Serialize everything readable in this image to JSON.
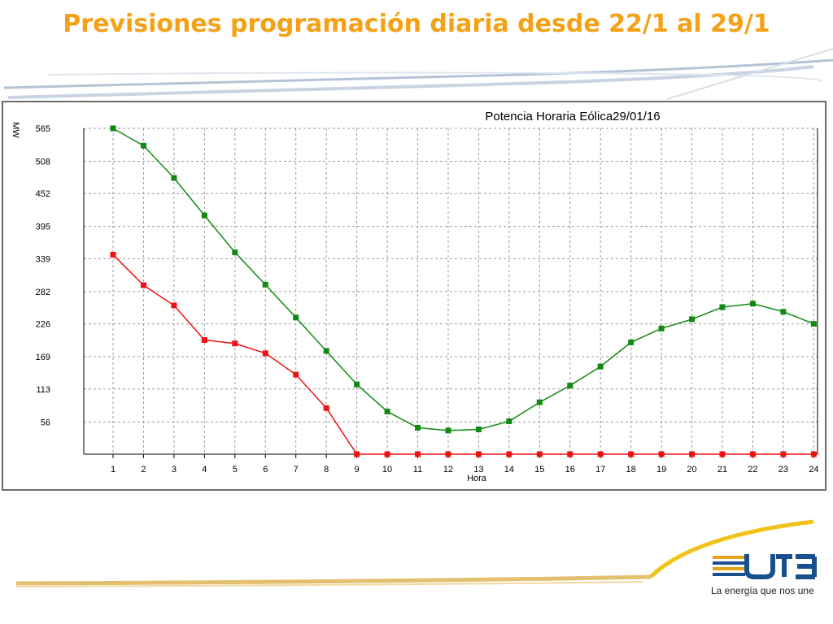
{
  "slide": {
    "title": "Previsiones programación diaria desde 22/1 al 29/1"
  },
  "logo": {
    "name": "UTE",
    "tagline": "La energía que nos une",
    "colors": {
      "text": "#1a4f8f",
      "stripes": "#e2a316"
    }
  },
  "colors": {
    "accent": "#f5a116",
    "series_green": "#118a11",
    "series_red": "#ee1111",
    "grid": "#9a9a9a"
  },
  "chart_data": {
    "type": "line",
    "title": "Potencia Horaria Eólica29/01/16",
    "xlabel": "Hora",
    "ylabel": "MW",
    "x": [
      1,
      2,
      3,
      4,
      5,
      6,
      7,
      8,
      9,
      10,
      11,
      12,
      13,
      14,
      15,
      16,
      17,
      18,
      19,
      20,
      21,
      22,
      23,
      24
    ],
    "ylim": [
      0,
      565
    ],
    "yticks": [
      56,
      113,
      169,
      226,
      282,
      339,
      395,
      452,
      508,
      565
    ],
    "grid": true,
    "series": [
      {
        "color": "#118a11",
        "values": [
          565,
          535,
          479,
          414,
          350,
          294,
          237,
          179,
          121,
          74,
          46,
          41,
          43,
          57,
          90,
          119,
          152,
          194,
          218,
          234,
          255,
          261,
          247,
          226
        ]
      },
      {
        "color": "#ee1111",
        "values": [
          346,
          293,
          258,
          198,
          192,
          175,
          138,
          80,
          0,
          0,
          0,
          0,
          0,
          0,
          0,
          0,
          0,
          0,
          0,
          0,
          0,
          0,
          0,
          0
        ]
      }
    ]
  }
}
